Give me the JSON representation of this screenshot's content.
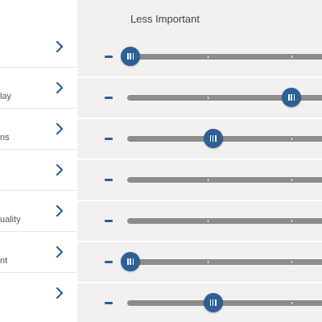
{
  "header": {
    "column_label": "Less Important"
  },
  "sidebar": {
    "items": [
      {
        "label": ""
      },
      {
        "label": "lay"
      },
      {
        "label": "ns"
      },
      {
        "label": ""
      },
      {
        "label": "uality"
      },
      {
        "label": "nt"
      },
      {
        "label": ""
      }
    ]
  },
  "sliders": [
    {
      "value": 0.0
    },
    {
      "value": 0.8
    },
    {
      "value": 0.41
    },
    {
      "value": null
    },
    {
      "value": null
    },
    {
      "value": 0.0
    },
    {
      "value": 0.41
    }
  ],
  "colors": {
    "accent": "#2e5f96",
    "track": "#8c8c8c",
    "panel_background": "#f2f1ef"
  },
  "icons": {
    "nav": "chevron-right-icon",
    "decrease": "minus-icon",
    "handle": "slider-grip-icon"
  }
}
